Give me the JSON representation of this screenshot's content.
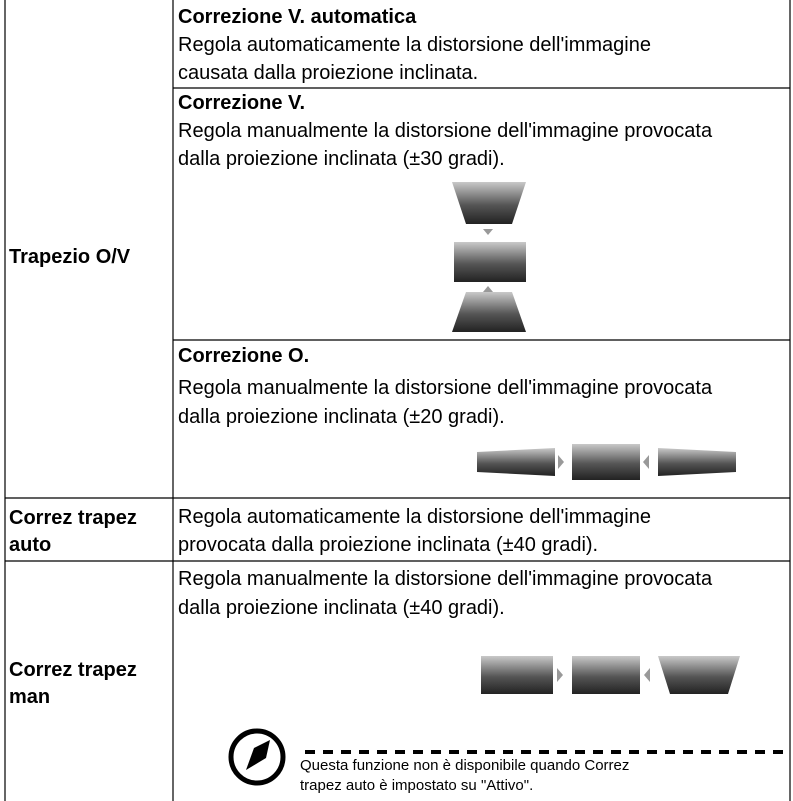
{
  "table": {
    "rows": [
      {
        "label": "Trapezio O/V",
        "sections": [
          {
            "heading": "Correzione V. automatica",
            "lines": [
              "Regola automaticamente la distorsione dell'immagine",
              "causata dalla proiezione inclinata."
            ]
          },
          {
            "heading": "Correzione V.",
            "lines": [
              "Regola manualmente la distorsione dell'immagine provocata",
              "dalla proiezione inclinata (±30 gradi)."
            ]
          },
          {
            "heading": "Correzione O.",
            "lines": [
              "Regola manualmente la distorsione dell'immagine provocata",
              "dalla proiezione inclinata (±20 gradi)."
            ]
          }
        ]
      },
      {
        "label": "Correz trapez auto",
        "lines": [
          "Regola automaticamente la distorsione dell'immagine",
          "provocata dalla proiezione inclinata (±40 gradi)."
        ]
      },
      {
        "label": "Correz trapez man",
        "lines": [
          "Regola manualmente la distorsione dell'immagine provocata",
          "dalla proiezione inclinata (±40 gradi)."
        ],
        "note": [
          "Questa funzione non è disponibile quando Correz",
          "trapez auto è impostato su \"Attivo\"."
        ]
      }
    ]
  }
}
